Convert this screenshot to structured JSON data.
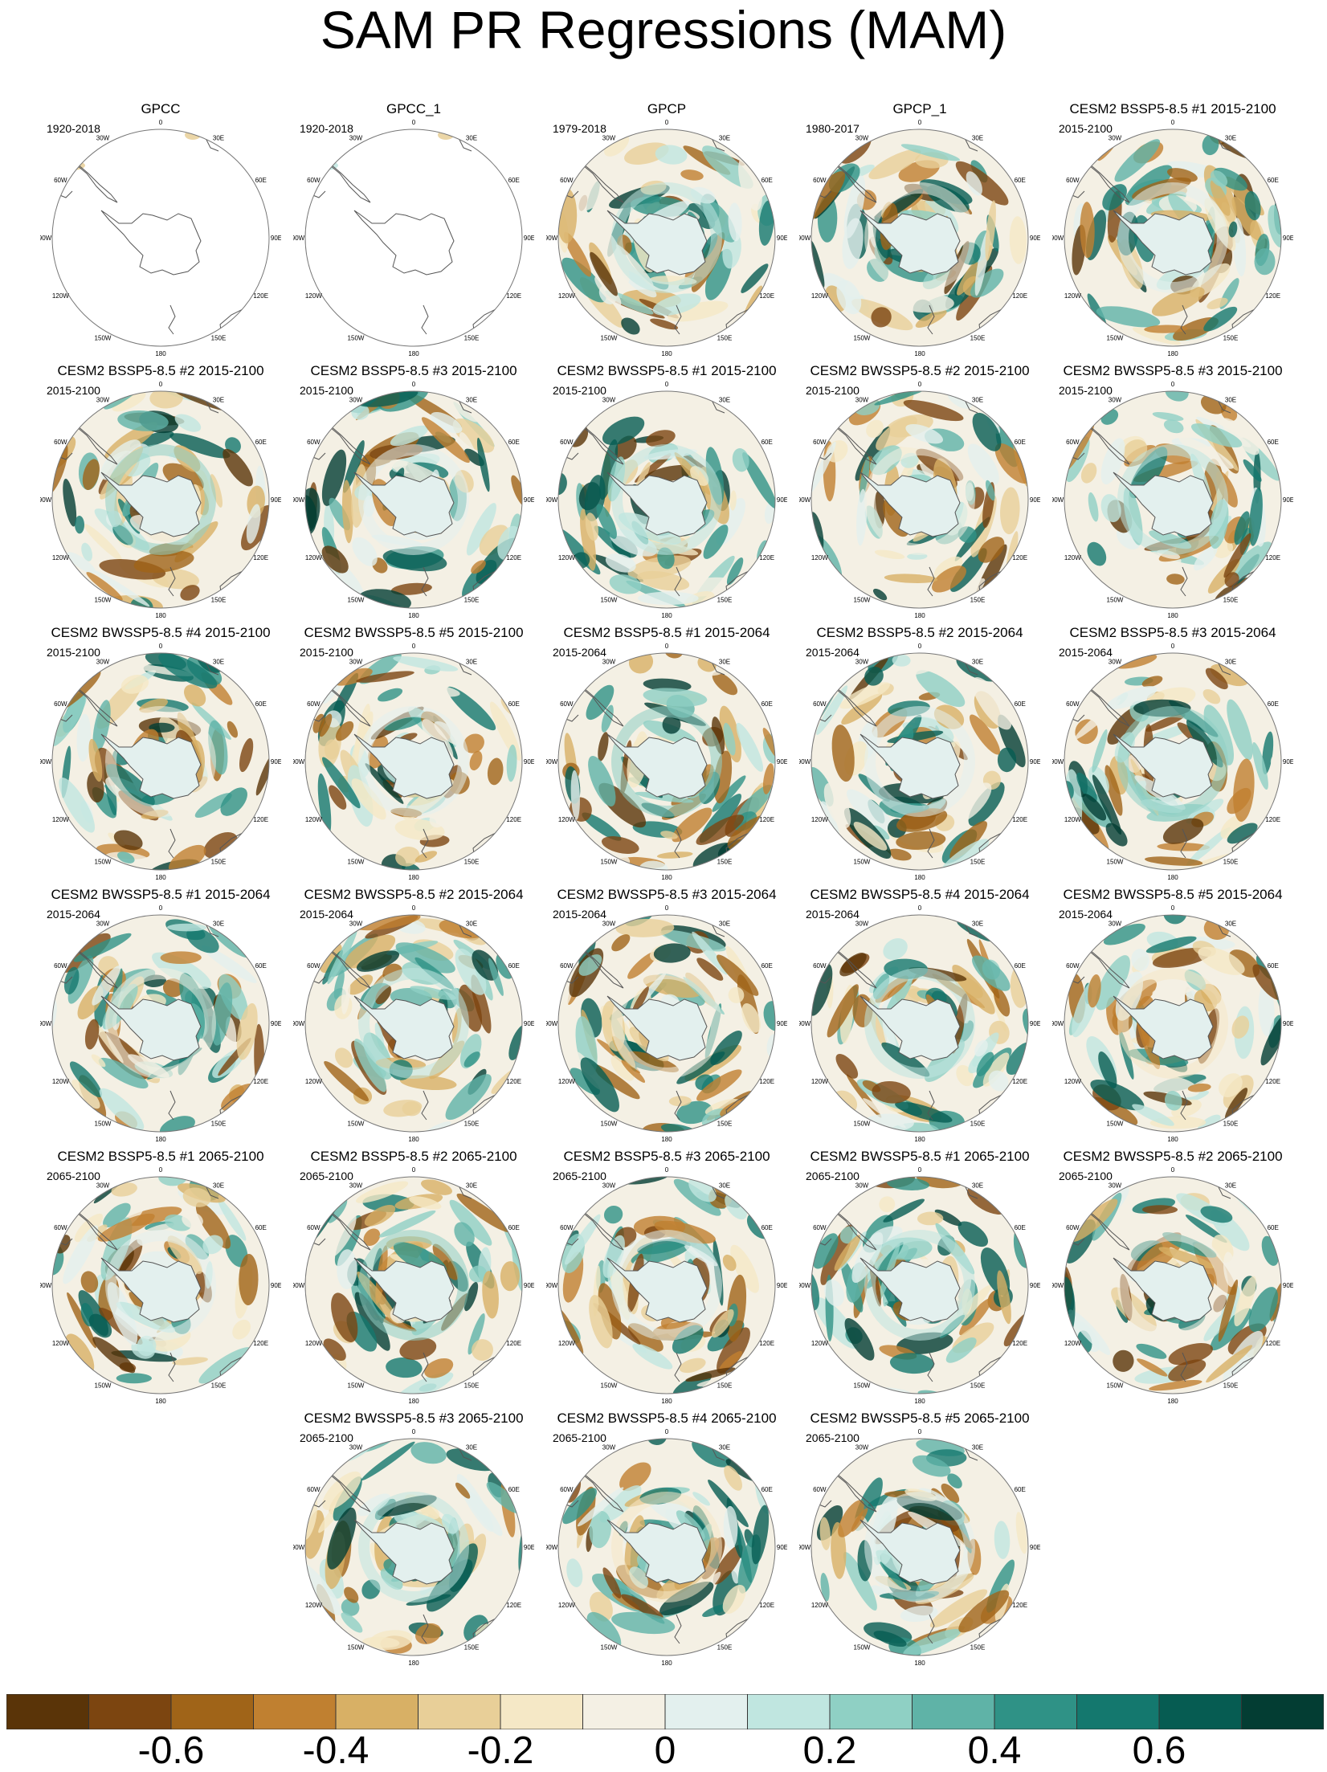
{
  "title": "SAM PR Regressions (MAM)",
  "lon_labels": [
    "0",
    "30E",
    "60E",
    "90E",
    "120E",
    "150E",
    "180",
    "150W",
    "120W",
    "90W",
    "60W",
    "30W"
  ],
  "panels": [
    {
      "title": "GPCC",
      "period": "1920-2018",
      "observed_coverage": "land-only"
    },
    {
      "title": "GPCC_1",
      "period": "1920-2018",
      "observed_coverage": "land-only"
    },
    {
      "title": "GPCP",
      "period": "1979-2018"
    },
    {
      "title": "GPCP_1",
      "period": "1980-2017"
    },
    {
      "title": "CESM2 BSSP5-8.5 #1 2015-2100",
      "period": "2015-2100"
    },
    {
      "title": "CESM2 BSSP5-8.5 #2 2015-2100",
      "period": "2015-2100"
    },
    {
      "title": "CESM2 BSSP5-8.5 #3 2015-2100",
      "period": "2015-2100"
    },
    {
      "title": "CESM2 BWSSP5-8.5 #1 2015-2100",
      "period": "2015-2100"
    },
    {
      "title": "CESM2 BWSSP5-8.5 #2 2015-2100",
      "period": "2015-2100"
    },
    {
      "title": "CESM2 BWSSP5-8.5 #3 2015-2100",
      "period": "2015-2100"
    },
    {
      "title": "CESM2 BWSSP5-8.5 #4 2015-2100",
      "period": "2015-2100"
    },
    {
      "title": "CESM2 BWSSP5-8.5 #5 2015-2100",
      "period": "2015-2100"
    },
    {
      "title": "CESM2 BSSP5-8.5 #1 2015-2064",
      "period": "2015-2064"
    },
    {
      "title": "CESM2 BSSP5-8.5 #2 2015-2064",
      "period": "2015-2064"
    },
    {
      "title": "CESM2 BSSP5-8.5 #3 2015-2064",
      "period": "2015-2064"
    },
    {
      "title": "CESM2 BWSSP5-8.5 #1 2015-2064",
      "period": "2015-2064"
    },
    {
      "title": "CESM2 BWSSP5-8.5 #2 2015-2064",
      "period": "2015-2064"
    },
    {
      "title": "CESM2 BWSSP5-8.5 #3 2015-2064",
      "period": "2015-2064"
    },
    {
      "title": "CESM2 BWSSP5-8.5 #4 2015-2064",
      "period": "2015-2064"
    },
    {
      "title": "CESM2 BWSSP5-8.5 #5 2015-2064",
      "period": "2015-2064"
    },
    {
      "title": "CESM2 BSSP5-8.5 #1 2065-2100",
      "period": "2065-2100"
    },
    {
      "title": "CESM2 BSSP5-8.5 #2 2065-2100",
      "period": "2065-2100"
    },
    {
      "title": "CESM2 BSSP5-8.5 #3 2065-2100",
      "period": "2065-2100"
    },
    {
      "title": "CESM2 BWSSP5-8.5 #1 2065-2100",
      "period": "2065-2100"
    },
    {
      "title": "CESM2 BWSSP5-8.5 #2 2065-2100",
      "period": "2065-2100"
    },
    {
      "title": "CESM2 BWSSP5-8.5 #3 2065-2100",
      "period": "2065-2100"
    },
    {
      "title": "CESM2 BWSSP5-8.5 #4 2065-2100",
      "period": "2065-2100"
    },
    {
      "title": "CESM2 BWSSP5-8.5 #5 2065-2100",
      "period": "2065-2100"
    }
  ],
  "colorbar": {
    "colors": [
      "#5a3408",
      "#7c4510",
      "#a06418",
      "#c08030",
      "#d8b065",
      "#e8cf98",
      "#f5e8c6",
      "#f4f0e4",
      "#e3f0ee",
      "#c0e6e0",
      "#8fd0c4",
      "#5fb3a7",
      "#2f9286",
      "#14786e",
      "#065c52",
      "#033d33"
    ],
    "tick_labels": [
      {
        "text": "-0.6",
        "value": -0.6
      },
      {
        "text": "-0.4",
        "value": -0.4
      },
      {
        "text": "-0.2",
        "value": -0.2
      },
      {
        "text": "0",
        "value": 0
      },
      {
        "text": "0.2",
        "value": 0.2
      },
      {
        "text": "0.4",
        "value": 0.4
      },
      {
        "text": "0.6",
        "value": 0.6
      }
    ],
    "range": [
      -0.8,
      0.8
    ]
  }
}
